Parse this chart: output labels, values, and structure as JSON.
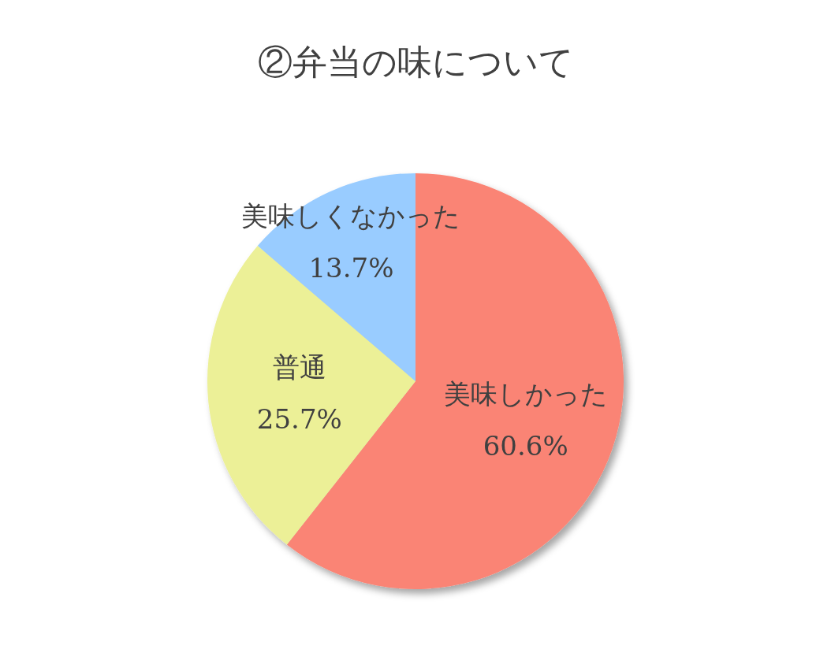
{
  "chart_data": {
    "type": "pie",
    "title": "②弁当の味について",
    "categories": [
      "美味しかった",
      "普通",
      "美味しくなかった"
    ],
    "values": [
      60.6,
      25.7,
      13.7
    ],
    "colors": [
      "#fa8475",
      "#ecf097",
      "#99ccff"
    ],
    "value_labels": [
      "60.6%",
      "25.7%",
      "13.7%"
    ]
  }
}
